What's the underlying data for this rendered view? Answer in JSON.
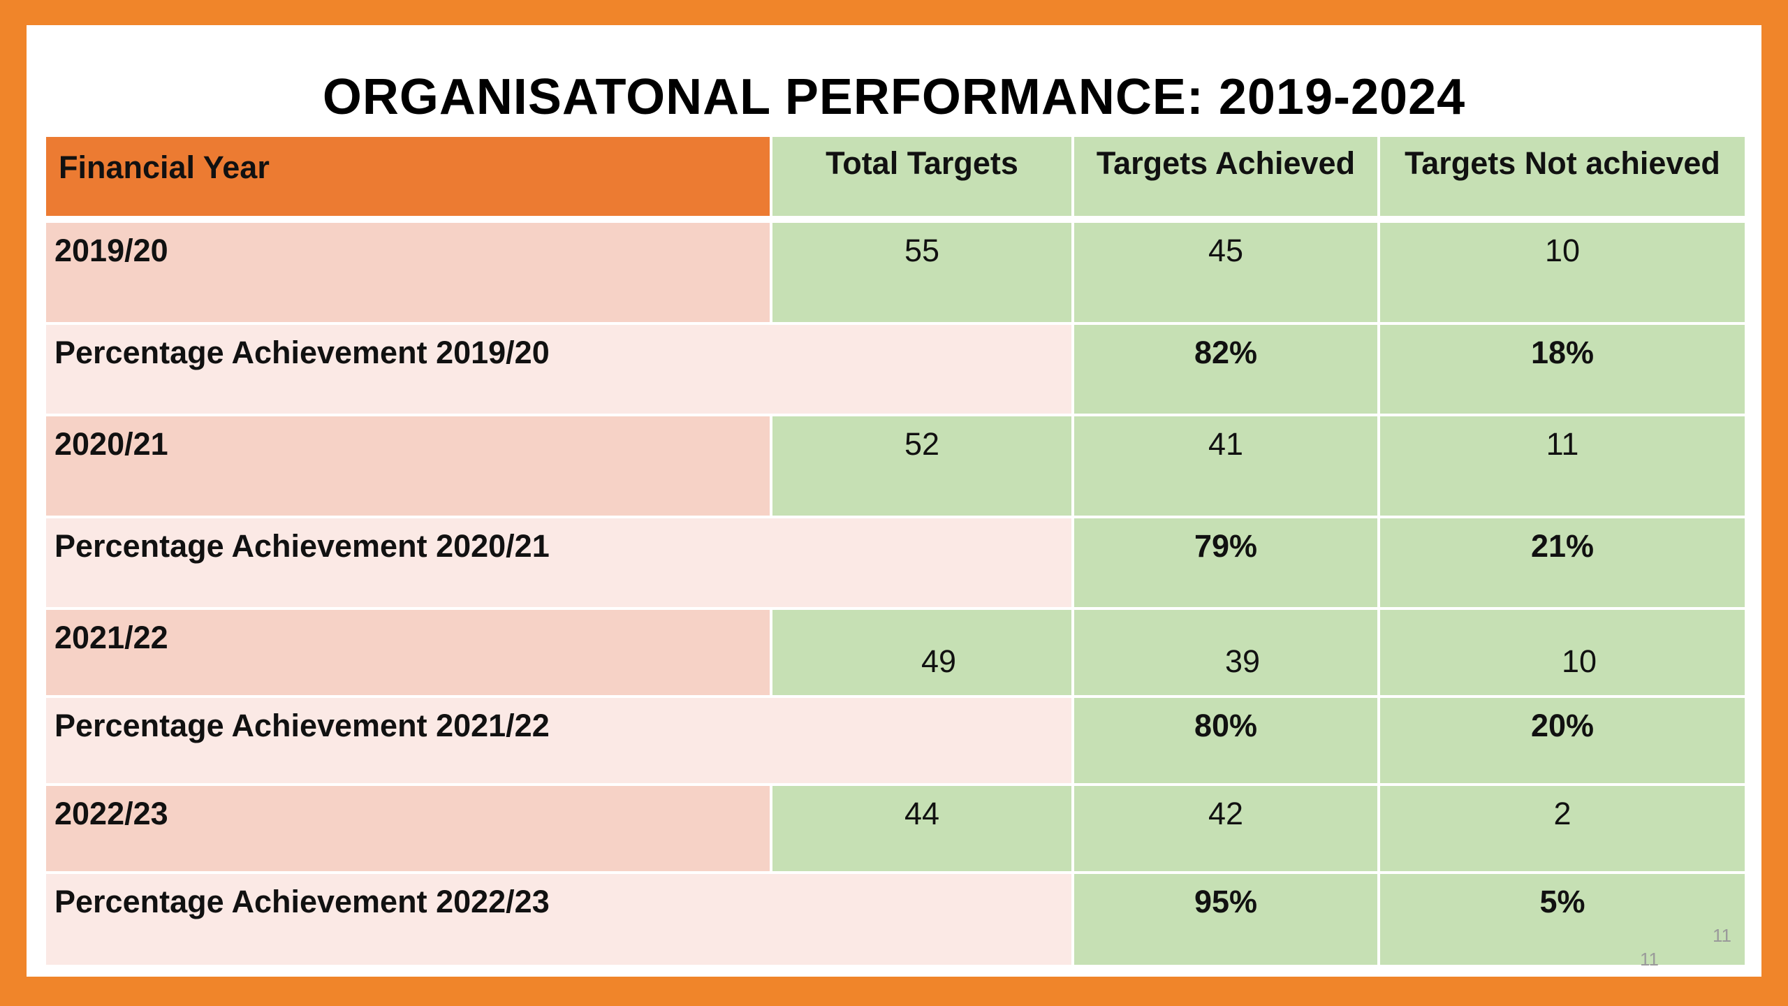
{
  "title": "ORGANISATONAL PERFORMANCE: 2019-2024",
  "table": {
    "headers": [
      "Financial Year",
      "Total Targets",
      "Targets Achieved",
      "Targets Not achieved"
    ],
    "rows": [
      {
        "year": "2019/20",
        "total": "55",
        "achieved": "45",
        "not_achieved": "10",
        "pct_label": "Percentage Achievement 2019/20",
        "pct_achieved": "82%",
        "pct_not": "18%"
      },
      {
        "year": "2020/21",
        "total": "52",
        "achieved": "41",
        "not_achieved": "11",
        "pct_label": "Percentage Achievement 2020/21",
        "pct_achieved": "79%",
        "pct_not": "21%"
      },
      {
        "year": "2021/22",
        "total": "49",
        "achieved": "39",
        "not_achieved": "10",
        "pct_label": "Percentage Achievement 2021/22",
        "pct_achieved": "80%",
        "pct_not": "20%"
      },
      {
        "year": "2022/23",
        "total": "44",
        "achieved": "42",
        "not_achieved": "2",
        "pct_label": "Percentage Achievement 2022/23",
        "pct_achieved": "95%",
        "pct_not": "5%"
      }
    ]
  },
  "page_number": "11",
  "page_number_duplicate": "11",
  "colors": {
    "frame": "#F0852A",
    "header_year": "#EC7B32",
    "green": "#C6E0B4",
    "year_row": "#F6D2C6",
    "pct_row": "#FBE9E5"
  }
}
